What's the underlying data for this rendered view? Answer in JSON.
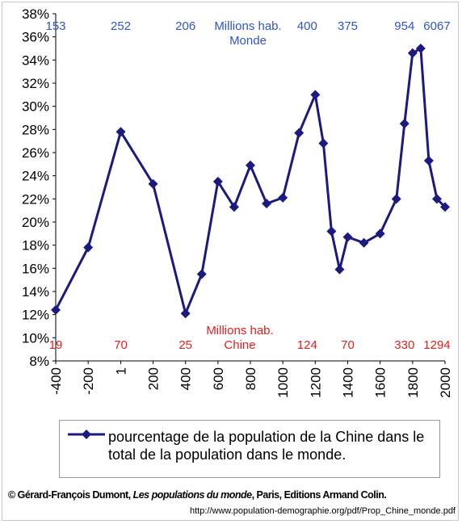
{
  "chart_data": {
    "type": "line",
    "title": "",
    "xlabel": "",
    "ylabel": "",
    "x_ticks": [
      "-400",
      "-200",
      "1",
      "200",
      "400",
      "600",
      "800",
      "1000",
      "1200",
      "1400",
      "1600",
      "1800",
      "2000"
    ],
    "y_ticks": [
      "8%",
      "10%",
      "12%",
      "14%",
      "16%",
      "18%",
      "20%",
      "22%",
      "24%",
      "26%",
      "28%",
      "30%",
      "32%",
      "34%",
      "36%",
      "38%"
    ],
    "xlim": [
      -400,
      2000
    ],
    "ylim": [
      8,
      38
    ],
    "grid": false,
    "legend_position": "bottom",
    "series": [
      {
        "name": "pourcentage de la population de la Chine dans le total de la population dans le monde.",
        "color": "#1a1a80",
        "marker": "diamond",
        "points": [
          {
            "x": -400,
            "y": 12.4
          },
          {
            "x": -200,
            "y": 17.8
          },
          {
            "x": 1,
            "y": 27.8
          },
          {
            "x": 200,
            "y": 23.3
          },
          {
            "x": 400,
            "y": 12.1
          },
          {
            "x": 500,
            "y": 15.5
          },
          {
            "x": 600,
            "y": 23.5
          },
          {
            "x": 700,
            "y": 21.3
          },
          {
            "x": 800,
            "y": 24.9
          },
          {
            "x": 900,
            "y": 21.6
          },
          {
            "x": 1000,
            "y": 22.1
          },
          {
            "x": 1100,
            "y": 27.7
          },
          {
            "x": 1200,
            "y": 31.0
          },
          {
            "x": 1250,
            "y": 26.8
          },
          {
            "x": 1300,
            "y": 19.2
          },
          {
            "x": 1350,
            "y": 15.9
          },
          {
            "x": 1400,
            "y": 18.7
          },
          {
            "x": 1500,
            "y": 18.2
          },
          {
            "x": 1600,
            "y": 19.0
          },
          {
            "x": 1700,
            "y": 22.0
          },
          {
            "x": 1750,
            "y": 28.5
          },
          {
            "x": 1800,
            "y": 34.6
          },
          {
            "x": 1850,
            "y": 35.0
          },
          {
            "x": 1900,
            "y": 25.3
          },
          {
            "x": 1950,
            "y": 22.0
          },
          {
            "x": 2000,
            "y": 21.3
          }
        ]
      }
    ],
    "annotations": {
      "world": {
        "label": [
          "Millions hab.",
          "Monde"
        ],
        "color": "#2f55c8",
        "values": [
          {
            "x": -400,
            "text": "153"
          },
          {
            "x": 1,
            "text": "252"
          },
          {
            "x": 400,
            "text": "206"
          },
          {
            "x": 1150,
            "text": "400"
          },
          {
            "x": 1400,
            "text": "375"
          },
          {
            "x": 1750,
            "text": "954"
          },
          {
            "x": 1950,
            "text": "6067"
          }
        ]
      },
      "china": {
        "label": [
          "Millions hab.",
          "Chine"
        ],
        "color": "#e02020",
        "values": [
          {
            "x": -400,
            "text": "19"
          },
          {
            "x": 1,
            "text": "70"
          },
          {
            "x": 400,
            "text": "25"
          },
          {
            "x": 1150,
            "text": "124"
          },
          {
            "x": 1400,
            "text": "70"
          },
          {
            "x": 1750,
            "text": "330"
          },
          {
            "x": 1950,
            "text": "1294"
          }
        ]
      }
    }
  },
  "credit": {
    "prefix": "© Gérard-François Dumont, ",
    "title": "Les populations du monde",
    "suffix": ", Paris, Editions Armand Colin."
  },
  "url": "http://www.population-demographie.org/pdf/Prop_Chine_monde.pdf"
}
